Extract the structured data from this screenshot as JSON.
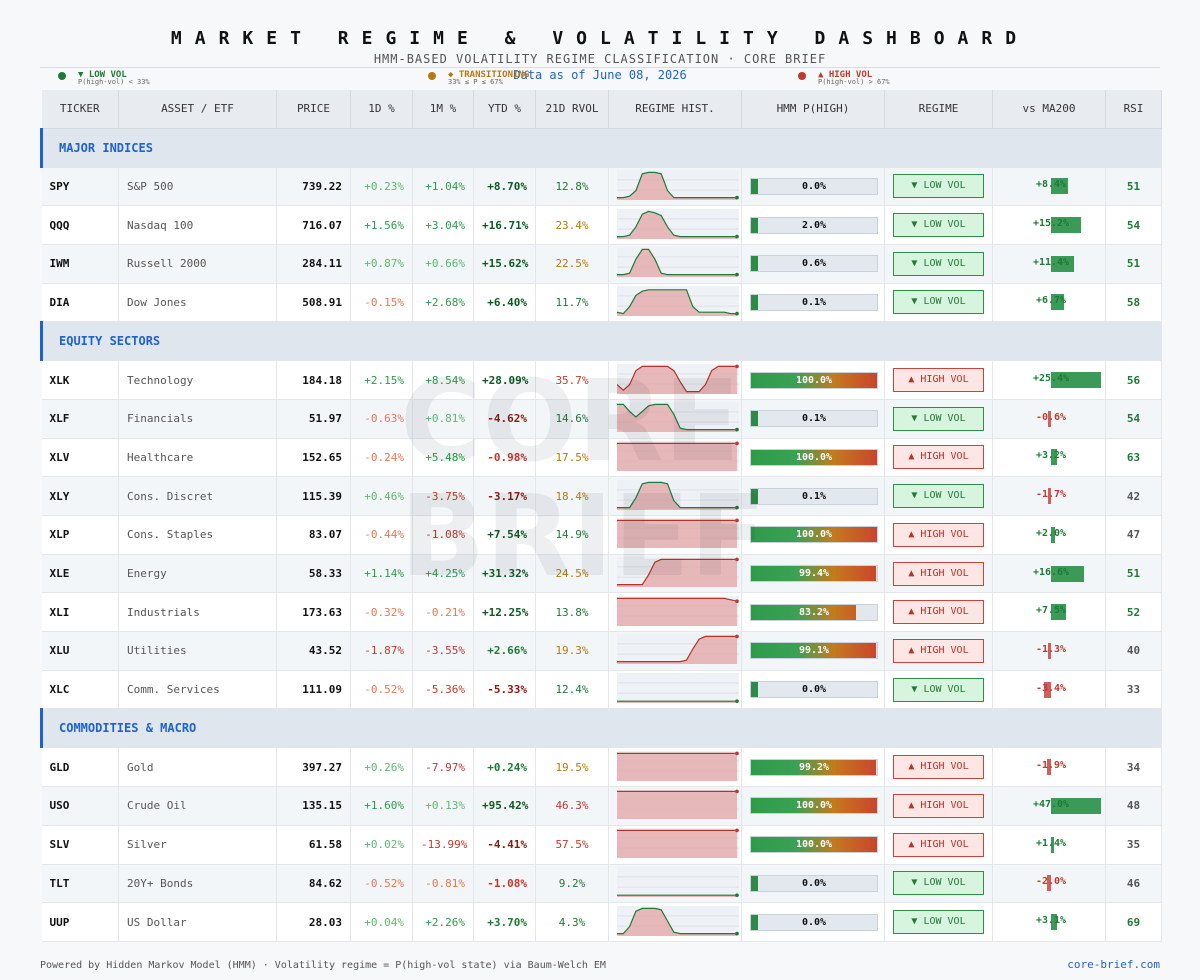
{
  "header": {
    "title": "MARKET REGIME & VOLATILITY DASHBOARD",
    "subtitle": "HMM-BASED VOLATILITY REGIME CLASSIFICATION   ·   CORE BRIEF",
    "as_of": "Data as of  June 08, 2026"
  },
  "legend": [
    {
      "label": "▼ LOW VOL",
      "note": "P(high-vol) < 33%",
      "color": "#1f7a36"
    },
    {
      "label": "◆ TRANSITIONING",
      "note": "33% ≤ P ≤ 67%",
      "color": "#b5790f"
    },
    {
      "label": "▲ HIGH VOL",
      "note": "P(high-vol) > 67%",
      "color": "#c0392b"
    }
  ],
  "watermark": "CORE BRIEF",
  "columns": [
    "TICKER",
    "ASSET / ETF",
    "PRICE",
    "1D %",
    "1M %",
    "YTD %",
    "21D RVOL",
    "REGIME HIST.",
    "HMM  P(HIGH)",
    "REGIME",
    "vs MA200",
    "RSI"
  ],
  "colors": {
    "low": "#1f7a36",
    "high": "#c0392b",
    "mid": "#b5790f",
    "accent": "#1e63c8"
  },
  "regime_labels": {
    "low": "▼ LOW VOL",
    "high": "▲ HIGH VOL"
  },
  "sections": [
    {
      "name": "MAJOR INDICES",
      "rows": [
        {
          "ticker": "SPY",
          "name": "S&P 500",
          "price": "739.22",
          "d1": "+0.23%",
          "m1": "+1.04%",
          "ytd": "+8.70%",
          "rvol": "12.8%",
          "phigh": "0.0%",
          "p": 0.0,
          "regime": "low",
          "ma": "+8.4%",
          "ma_v": 8.4,
          "rsi": "51",
          "hist": [
            0.05,
            0.05,
            0.1,
            0.3,
            0.9,
            0.95,
            0.95,
            0.9,
            0.3,
            0.05,
            0.05,
            0.05,
            0.05,
            0.05,
            0.05,
            0.05,
            0.05,
            0.05,
            0.05,
            0.05
          ]
        },
        {
          "ticker": "QQQ",
          "name": "Nasdaq 100",
          "price": "716.07",
          "d1": "+1.56%",
          "m1": "+3.04%",
          "ytd": "+16.71%",
          "rvol": "23.4%",
          "phigh": "2.0%",
          "p": 0.02,
          "regime": "low",
          "ma": "+15.2%",
          "ma_v": 15.2,
          "rsi": "54",
          "hist": [
            0.05,
            0.05,
            0.1,
            0.4,
            0.85,
            0.95,
            0.9,
            0.8,
            0.4,
            0.1,
            0.05,
            0.05,
            0.05,
            0.05,
            0.05,
            0.05,
            0.05,
            0.05,
            0.05,
            0.05
          ]
        },
        {
          "ticker": "IWM",
          "name": "Russell 2000",
          "price": "284.11",
          "d1": "+0.87%",
          "m1": "+0.66%",
          "ytd": "+15.62%",
          "rvol": "22.5%",
          "phigh": "0.6%",
          "p": 0.006,
          "regime": "low",
          "ma": "+11.4%",
          "ma_v": 11.4,
          "rsi": "51",
          "hist": [
            0.05,
            0.05,
            0.1,
            0.6,
            0.95,
            0.95,
            0.6,
            0.1,
            0.05,
            0.05,
            0.05,
            0.05,
            0.05,
            0.05,
            0.05,
            0.05,
            0.05,
            0.05,
            0.05,
            0.05
          ]
        },
        {
          "ticker": "DIA",
          "name": "Dow Jones",
          "price": "508.91",
          "d1": "-0.15%",
          "m1": "+2.68%",
          "ytd": "+6.40%",
          "rvol": "11.7%",
          "phigh": "0.1%",
          "p": 0.001,
          "regime": "low",
          "ma": "+6.7%",
          "ma_v": 6.7,
          "rsi": "58",
          "hist": [
            0.1,
            0.05,
            0.3,
            0.7,
            0.85,
            0.9,
            0.9,
            0.9,
            0.9,
            0.9,
            0.9,
            0.9,
            0.3,
            0.1,
            0.1,
            0.1,
            0.1,
            0.1,
            0.05,
            0.05
          ]
        }
      ]
    },
    {
      "name": "EQUITY SECTORS",
      "rows": [
        {
          "ticker": "XLK",
          "name": "Technology",
          "price": "184.18",
          "d1": "+2.15%",
          "m1": "+8.54%",
          "ytd": "+28.09%",
          "rvol": "35.7%",
          "phigh": "100.0%",
          "p": 1.0,
          "regime": "high",
          "ma": "+25.4%",
          "ma_v": 25.4,
          "rsi": "56",
          "hist": [
            0.3,
            0.1,
            0.3,
            0.8,
            0.95,
            0.95,
            0.95,
            0.95,
            0.95,
            0.8,
            0.4,
            0.05,
            0.05,
            0.05,
            0.3,
            0.8,
            0.95,
            0.95,
            0.95,
            0.95
          ]
        },
        {
          "ticker": "XLF",
          "name": "Financials",
          "price": "51.97",
          "d1": "-0.63%",
          "m1": "+0.81%",
          "ytd": "-4.62%",
          "rvol": "14.6%",
          "phigh": "0.1%",
          "p": 0.001,
          "regime": "low",
          "ma": "-0.6%",
          "ma_v": -0.6,
          "rsi": "54",
          "hist": [
            0.95,
            0.95,
            0.7,
            0.5,
            0.7,
            0.9,
            0.95,
            0.95,
            0.95,
            0.6,
            0.1,
            0.05,
            0.05,
            0.05,
            0.05,
            0.05,
            0.05,
            0.05,
            0.05,
            0.05
          ]
        },
        {
          "ticker": "XLV",
          "name": "Healthcare",
          "price": "152.65",
          "d1": "-0.24%",
          "m1": "+5.48%",
          "ytd": "-0.98%",
          "rvol": "17.5%",
          "phigh": "100.0%",
          "p": 1.0,
          "regime": "high",
          "ma": "+3.2%",
          "ma_v": 3.2,
          "rsi": "63",
          "hist": [
            0.95,
            0.95,
            0.95,
            0.95,
            0.95,
            0.95,
            0.95,
            0.95,
            0.95,
            0.95,
            0.95,
            0.95,
            0.95,
            0.95,
            0.95,
            0.95,
            0.95,
            0.95,
            0.95,
            0.95
          ]
        },
        {
          "ticker": "XLY",
          "name": "Cons. Discret",
          "price": "115.39",
          "d1": "+0.46%",
          "m1": "-3.75%",
          "ytd": "-3.17%",
          "rvol": "18.4%",
          "phigh": "0.1%",
          "p": 0.001,
          "regime": "low",
          "ma": "-1.7%",
          "ma_v": -1.7,
          "rsi": "42",
          "hist": [
            0.05,
            0.05,
            0.05,
            0.4,
            0.9,
            0.95,
            0.95,
            0.95,
            0.9,
            0.3,
            0.05,
            0.05,
            0.05,
            0.05,
            0.05,
            0.05,
            0.05,
            0.05,
            0.05,
            0.05
          ]
        },
        {
          "ticker": "XLP",
          "name": "Cons. Staples",
          "price": "83.07",
          "d1": "-0.44%",
          "m1": "-1.08%",
          "ytd": "+7.54%",
          "rvol": "14.9%",
          "phigh": "100.0%",
          "p": 1.0,
          "regime": "high",
          "ma": "+2.0%",
          "ma_v": 2.0,
          "rsi": "47",
          "hist": [
            0.95,
            0.95,
            0.95,
            0.95,
            0.95,
            0.95,
            0.95,
            0.95,
            0.95,
            0.95,
            0.95,
            0.95,
            0.95,
            0.95,
            0.95,
            0.95,
            0.95,
            0.95,
            0.95,
            0.95
          ]
        },
        {
          "ticker": "XLE",
          "name": "Energy",
          "price": "58.33",
          "d1": "+1.14%",
          "m1": "+4.25%",
          "ytd": "+31.32%",
          "rvol": "24.5%",
          "phigh": "99.4%",
          "p": 0.994,
          "regime": "high",
          "ma": "+16.6%",
          "ma_v": 16.6,
          "rsi": "51",
          "hist": [
            0.05,
            0.05,
            0.05,
            0.05,
            0.05,
            0.4,
            0.85,
            0.95,
            0.95,
            0.95,
            0.95,
            0.95,
            0.95,
            0.95,
            0.95,
            0.95,
            0.95,
            0.95,
            0.95,
            0.95
          ]
        },
        {
          "ticker": "XLI",
          "name": "Industrials",
          "price": "173.63",
          "d1": "-0.32%",
          "m1": "-0.21%",
          "ytd": "+12.25%",
          "rvol": "13.8%",
          "phigh": "83.2%",
          "p": 0.832,
          "regime": "high",
          "ma": "+7.5%",
          "ma_v": 7.5,
          "rsi": "52",
          "hist": [
            0.95,
            0.95,
            0.95,
            0.95,
            0.95,
            0.95,
            0.95,
            0.95,
            0.95,
            0.95,
            0.95,
            0.95,
            0.95,
            0.95,
            0.95,
            0.95,
            0.95,
            0.95,
            0.9,
            0.85
          ]
        },
        {
          "ticker": "XLU",
          "name": "Utilities",
          "price": "43.52",
          "d1": "-1.87%",
          "m1": "-3.55%",
          "ytd": "+2.66%",
          "rvol": "19.3%",
          "phigh": "99.1%",
          "p": 0.991,
          "regime": "high",
          "ma": "-1.3%",
          "ma_v": -1.3,
          "rsi": "40",
          "hist": [
            0.05,
            0.05,
            0.05,
            0.05,
            0.05,
            0.05,
            0.05,
            0.05,
            0.05,
            0.05,
            0.05,
            0.1,
            0.5,
            0.85,
            0.95,
            0.95,
            0.95,
            0.95,
            0.95,
            0.95
          ]
        },
        {
          "ticker": "XLC",
          "name": "Comm. Services",
          "price": "111.09",
          "d1": "-0.52%",
          "m1": "-5.36%",
          "ytd": "-5.33%",
          "rvol": "12.4%",
          "phigh": "0.0%",
          "p": 0.0,
          "regime": "low",
          "ma": "-3.4%",
          "ma_v": -3.4,
          "rsi": "33",
          "hist": [
            0.03,
            0.03,
            0.03,
            0.03,
            0.03,
            0.03,
            0.03,
            0.03,
            0.03,
            0.03,
            0.03,
            0.03,
            0.03,
            0.03,
            0.03,
            0.03,
            0.03,
            0.03,
            0.03,
            0.03
          ]
        }
      ]
    },
    {
      "name": "COMMODITIES & MACRO",
      "rows": [
        {
          "ticker": "GLD",
          "name": "Gold",
          "price": "397.27",
          "d1": "+0.26%",
          "m1": "-7.97%",
          "ytd": "+0.24%",
          "rvol": "19.5%",
          "phigh": "99.2%",
          "p": 0.992,
          "regime": "high",
          "ma": "-1.9%",
          "ma_v": -1.9,
          "rsi": "34",
          "hist": [
            0.95,
            0.95,
            0.95,
            0.95,
            0.95,
            0.95,
            0.95,
            0.95,
            0.95,
            0.95,
            0.95,
            0.95,
            0.95,
            0.95,
            0.95,
            0.95,
            0.95,
            0.95,
            0.95,
            0.95
          ]
        },
        {
          "ticker": "USO",
          "name": "Crude Oil",
          "price": "135.15",
          "d1": "+1.60%",
          "m1": "+0.13%",
          "ytd": "+95.42%",
          "rvol": "46.3%",
          "phigh": "100.0%",
          "p": 1.0,
          "regime": "high",
          "ma": "+47.0%",
          "ma_v": 47.0,
          "rsi": "48",
          "hist": [
            0.95,
            0.95,
            0.95,
            0.95,
            0.95,
            0.95,
            0.95,
            0.95,
            0.95,
            0.95,
            0.95,
            0.95,
            0.95,
            0.95,
            0.95,
            0.95,
            0.95,
            0.95,
            0.95,
            0.95
          ]
        },
        {
          "ticker": "SLV",
          "name": "Silver",
          "price": "61.58",
          "d1": "+0.02%",
          "m1": "-13.99%",
          "ytd": "-4.41%",
          "rvol": "57.5%",
          "phigh": "100.0%",
          "p": 1.0,
          "regime": "high",
          "ma": "+1.4%",
          "ma_v": 1.4,
          "rsi": "35",
          "hist": [
            0.95,
            0.95,
            0.95,
            0.95,
            0.95,
            0.95,
            0.95,
            0.95,
            0.95,
            0.95,
            0.95,
            0.95,
            0.95,
            0.95,
            0.95,
            0.95,
            0.95,
            0.95,
            0.95,
            0.95
          ]
        },
        {
          "ticker": "TLT",
          "name": "20Y+ Bonds",
          "price": "84.62",
          "d1": "-0.52%",
          "m1": "-0.81%",
          "ytd": "-1.08%",
          "rvol": "9.2%",
          "phigh": "0.0%",
          "p": 0.0,
          "regime": "low",
          "ma": "-2.0%",
          "ma_v": -2.0,
          "rsi": "46",
          "hist": [
            0.03,
            0.03,
            0.03,
            0.03,
            0.03,
            0.03,
            0.03,
            0.03,
            0.03,
            0.03,
            0.03,
            0.03,
            0.03,
            0.03,
            0.03,
            0.03,
            0.03,
            0.03,
            0.03,
            0.03
          ]
        },
        {
          "ticker": "UUP",
          "name": "US Dollar",
          "price": "28.03",
          "d1": "+0.04%",
          "m1": "+2.26%",
          "ytd": "+3.70%",
          "rvol": "4.3%",
          "phigh": "0.0%",
          "p": 0.0,
          "regime": "low",
          "ma": "+3.1%",
          "ma_v": 3.1,
          "rsi": "69",
          "hist": [
            0.05,
            0.05,
            0.3,
            0.85,
            0.95,
            0.95,
            0.95,
            0.9,
            0.5,
            0.1,
            0.05,
            0.05,
            0.05,
            0.05,
            0.05,
            0.05,
            0.05,
            0.05,
            0.05,
            0.05
          ]
        }
      ]
    }
  ],
  "footer": {
    "text": "Powered by Hidden Markov Model (HMM) · Volatility regime = P(high-vol state) via Baum-Welch EM",
    "link": "core-brief.com"
  }
}
